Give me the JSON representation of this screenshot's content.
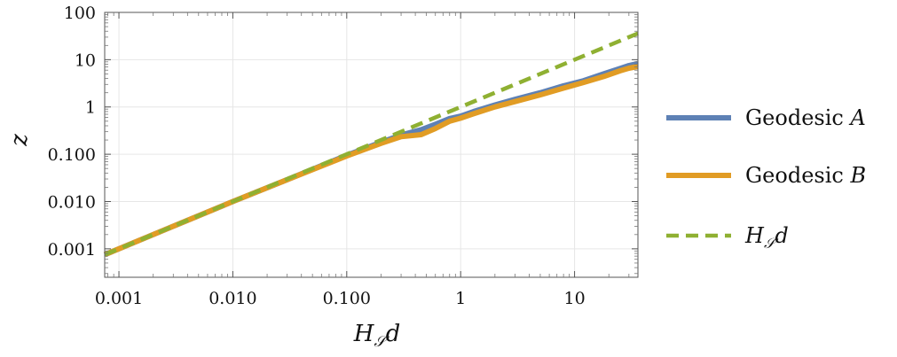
{
  "chart_data": {
    "type": "line",
    "title": "",
    "xlabel": "Hₛd",
    "xlabel_parts": {
      "main": "H",
      "sub": "𝒮",
      "tail": "d"
    },
    "ylabel": "z",
    "xscale": "log",
    "yscale": "log",
    "xlim": [
      0.00075,
      36
    ],
    "ylim": [
      0.00025,
      100
    ],
    "grid": true,
    "legend_position": "right",
    "x_ticks": [
      {
        "value": 0.001,
        "label": "0.001"
      },
      {
        "value": 0.01,
        "label": "0.010"
      },
      {
        "value": 0.1,
        "label": "0.100"
      },
      {
        "value": 1,
        "label": "1"
      },
      {
        "value": 10,
        "label": "10"
      }
    ],
    "y_ticks": [
      {
        "value": 0.001,
        "label": "0.001"
      },
      {
        "value": 0.01,
        "label": "0.010"
      },
      {
        "value": 0.1,
        "label": "0.100"
      },
      {
        "value": 1,
        "label": "1"
      },
      {
        "value": 10,
        "label": "10"
      },
      {
        "value": 100,
        "label": "100"
      }
    ],
    "series": [
      {
        "name": "Geodesic A",
        "legend": {
          "text": "Geodesic ",
          "var": "A"
        },
        "color": "#5e81b5",
        "style": "solid",
        "x": [
          0.00075,
          0.001,
          0.003,
          0.01,
          0.03,
          0.1,
          0.2,
          0.3,
          0.45,
          0.6,
          0.8,
          1.0,
          1.3,
          2,
          3,
          5,
          8,
          12,
          18,
          25,
          30,
          36
        ],
        "y": [
          0.00075,
          0.001,
          0.003,
          0.01,
          0.029,
          0.095,
          0.18,
          0.255,
          0.33,
          0.43,
          0.57,
          0.64,
          0.8,
          1.1,
          1.45,
          2.0,
          2.8,
          3.6,
          5.0,
          6.5,
          7.5,
          8.3
        ]
      },
      {
        "name": "Geodesic B",
        "legend": {
          "text": "Geodesic ",
          "var": "B"
        },
        "color": "#e19c24",
        "style": "solid",
        "x": [
          0.00075,
          0.001,
          0.003,
          0.01,
          0.03,
          0.1,
          0.2,
          0.3,
          0.45,
          0.6,
          0.8,
          1.0,
          1.3,
          2,
          3,
          5,
          8,
          12,
          18,
          25,
          30,
          36
        ],
        "y": [
          0.00075,
          0.001,
          0.003,
          0.01,
          0.029,
          0.092,
          0.17,
          0.235,
          0.26,
          0.35,
          0.5,
          0.58,
          0.72,
          1.0,
          1.3,
          1.8,
          2.5,
          3.3,
          4.4,
          5.8,
          6.6,
          7.2
        ]
      },
      {
        "name": "Hₛd",
        "legend": {
          "main": "H",
          "sub": "𝒮",
          "tail": "d"
        },
        "color": "#8fb032",
        "style": "dashed",
        "x": [
          0.00075,
          36
        ],
        "y": [
          0.00075,
          36
        ]
      }
    ]
  }
}
